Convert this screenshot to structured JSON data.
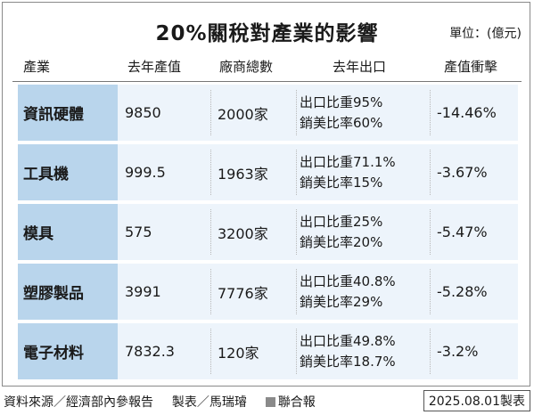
{
  "title": "20%關稅對產業的影響",
  "unit": "單位：(億元)",
  "headers": {
    "industry": "產業",
    "last_year_output": "去年產值",
    "total_firms": "廠商總數",
    "last_year_export": "去年出口",
    "output_impact": "產值衝擊"
  },
  "rows": [
    {
      "industry": "資訊硬體",
      "output": "9850",
      "firms": "2000家",
      "export_ratio": "出口比重95%",
      "us_ratio": "銷美比率60%",
      "impact": "-14.46%"
    },
    {
      "industry": "工具機",
      "output": "999.5",
      "firms": "1963家",
      "export_ratio": "出口比重71.1%",
      "us_ratio": "銷美比率15%",
      "impact": "-3.67%"
    },
    {
      "industry": "模具",
      "output": "575",
      "firms": "3200家",
      "export_ratio": "出口比重25%",
      "us_ratio": "銷美比率20%",
      "impact": "-5.47%"
    },
    {
      "industry": "塑膠製品",
      "output": "3991",
      "firms": "7776家",
      "export_ratio": "出口比重40.8%",
      "us_ratio": "銷美比率29%",
      "impact": "-5.28%"
    },
    {
      "industry": "電子材料",
      "output": "7832.3",
      "firms": "120家",
      "export_ratio": "出口比重49.8%",
      "us_ratio": "銷美比率18.7%",
      "impact": "-3.2%"
    }
  ],
  "footer": {
    "source": "資料來源／經濟部內參報告",
    "maker": "製表／馬瑞璿",
    "publisher": "聯合報",
    "date": "2025.08.01製表"
  },
  "colors": {
    "industry_cell": "#b9d5ec",
    "row_band": "#edf4fb",
    "publisher_square": "#8a8a8a"
  }
}
